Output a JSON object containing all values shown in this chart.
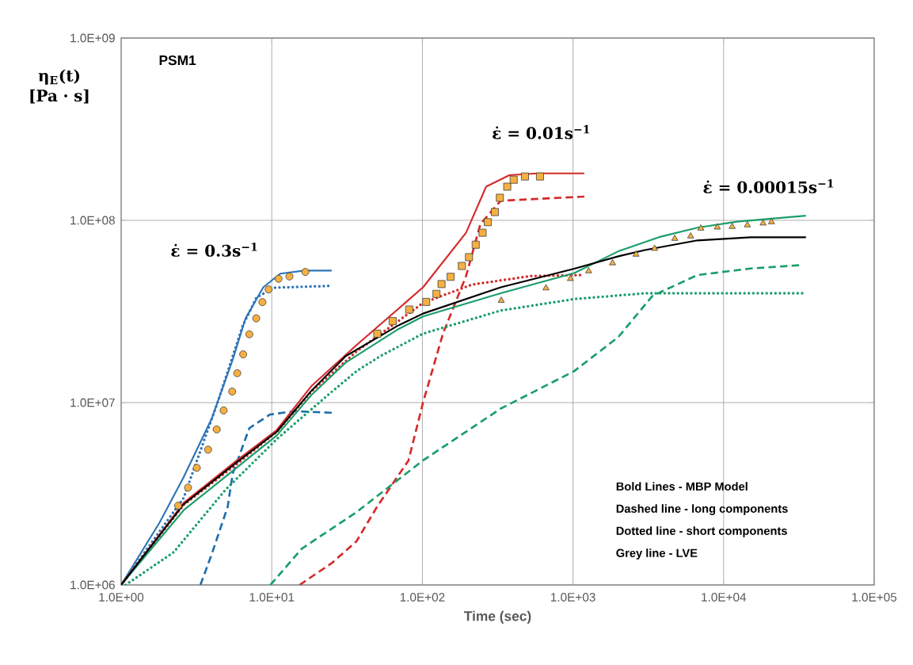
{
  "chart_data": {
    "type": "line",
    "xlabel": "Time (sec)",
    "ylabel": "η$_{E}$(t) [Pa · s]",
    "log": "xy",
    "grid": true,
    "xlim": [
      1,
      100000
    ],
    "ylim": [
      1000000,
      1000000000
    ],
    "xticks": [
      {
        "value": 1,
        "label": "1.0E+00"
      },
      {
        "value": 10,
        "label": "1.0E+01"
      },
      {
        "value": 100,
        "label": "1.0E+02"
      },
      {
        "value": 1000,
        "label": "1.0E+03"
      },
      {
        "value": 10000,
        "label": "1.0E+04"
      },
      {
        "value": 100000,
        "label": "1.0E+05"
      }
    ],
    "yticks": [
      {
        "value": 1000000,
        "label": "1.0E+06"
      },
      {
        "value": 10000000,
        "label": "1.0E+07"
      },
      {
        "value": 100000000,
        "label": "1.0E+08"
      },
      {
        "value": 1000000000,
        "label": "1.0E+09"
      }
    ],
    "annotations": [
      "PSM1",
      "ε̇ = 0.3s$^{−1}$",
      "ε̇ = 0.01s$^{−1}$",
      "ε̇ = 0.00015s$^{−1}$",
      "Bold Lines - MBP Model",
      "Dashed line - long components",
      "Dotted line - short components",
      "Grey line - LVE"
    ],
    "series": [
      {
        "line_style": "solid",
        "color": "#2e75b6",
        "x": [
          1,
          1.8,
          2.6,
          4,
          5.5,
          6.7,
          8.8,
          11.4,
          16.5,
          25
        ],
        "values": [
          1000000,
          2200000,
          3900000,
          8200000,
          17200000,
          29000000,
          43000000,
          51000000,
          53000000,
          53000000
        ]
      },
      {
        "line_style": "dotted",
        "color": "#2e75b6",
        "x": [
          1,
          2.6,
          4.4,
          6.4,
          7.9,
          10.3,
          25
        ],
        "values": [
          1000000,
          3000000,
          10200000,
          26300000,
          37600000,
          42700000,
          43700000
        ]
      },
      {
        "line_style": "dashed",
        "color": "#1f6fb0",
        "x": [
          3.36,
          4.0,
          5.1,
          5.5,
          7.1,
          9.7,
          14.1,
          25
        ],
        "values": [
          1000000,
          1480000,
          2690000,
          4070000,
          7240000,
          8600000,
          8980000,
          8800000
        ]
      },
      {
        "line_style": "solid",
        "color": "#d42a2a",
        "x": [
          1,
          2.6,
          5.8,
          10.8,
          18.3,
          36.6,
          101,
          195,
          265,
          378,
          582,
          1190
        ],
        "values": [
          1000000,
          2820000,
          4790000,
          7080000,
          12300000,
          20700000,
          42900000,
          85500000,
          153000000,
          177000000,
          181000000,
          181000000
        ]
      },
      {
        "line_style": "dotted",
        "color": "#d42a2a",
        "x": [
          1,
          2.6,
          5.8,
          10.8,
          18.3,
          36.6,
          101,
          213,
          526,
          1140
        ],
        "values": [
          1000000,
          2750000,
          4570000,
          6920000,
          11500000,
          19100000,
          35200000,
          44400000,
          49500000,
          50100000
        ]
      },
      {
        "line_style": "dashed",
        "color": "#d42a2a",
        "x": [
          15.3,
          25.1,
          36.6,
          50.1,
          80.9,
          101,
          137,
          195,
          243,
          331,
          1190
        ],
        "values": [
          1000000,
          1320000,
          1740000,
          2690000,
          4820000,
          10000000,
          23900000,
          49500000,
          95500000,
          128000000,
          135000000
        ]
      },
      {
        "line_style": "dotted",
        "color": "#1a9e6a",
        "x": [
          1.07,
          2.23,
          4.9,
          10.8,
          23.9,
          36.6,
          52.6,
          101,
          331,
          1020,
          3000,
          35200
        ],
        "values": [
          1000000,
          1510000,
          3310000,
          6310000,
          11100000,
          14900000,
          18000000,
          23900000,
          32000000,
          37000000,
          39800000,
          39800000
        ]
      },
      {
        "line_style": "dashed",
        "color": "#1a9e6a",
        "x": [
          9.8,
          15.8,
          36.6,
          101,
          331,
          1020,
          2000,
          3370,
          6700,
          15100,
          32400
        ],
        "values": [
          1000000,
          1580000,
          2510000,
          4820000,
          9270000,
          14900000,
          22900000,
          38500000,
          50100000,
          54400000,
          56800000
        ]
      },
      {
        "line_style": "solid",
        "color": "#1a9e6a",
        "x": [
          1,
          2.6,
          5.8,
          10.8,
          18.3,
          31,
          68,
          101,
          331,
          1020,
          2000,
          3730,
          6700,
          12300,
          35200
        ],
        "values": [
          1000000,
          2570000,
          4370000,
          6610000,
          11000000,
          16600000,
          25100000,
          29700000,
          39800000,
          51400000,
          67600000,
          80900000,
          91200000,
          98400000,
          106000000
        ]
      },
      {
        "line_style": "solid",
        "color": "#000000",
        "x": [
          1,
          2.6,
          5.8,
          10.8,
          18.3,
          31,
          68,
          101,
          331,
          1020,
          2000,
          3000,
          6700,
          15100,
          35200
        ],
        "values": [
          1000000,
          2770000,
          4680000,
          6920000,
          11600000,
          18000000,
          26300000,
          30800000,
          42900000,
          54300000,
          63500000,
          68700000,
          77600000,
          80700000,
          80700000
        ]
      },
      {
        "type": "scatter",
        "marker": "circle",
        "color": "#f5b041",
        "x": [
          2.39,
          2.78,
          3.18,
          3.78,
          4.31,
          4.79,
          5.46,
          5.9,
          6.46,
          7.1,
          7.89,
          8.67,
          9.53,
          11.1,
          13.1,
          16.7
        ],
        "values": [
          2720000,
          3420000,
          4390000,
          5520000,
          7130000,
          9060000,
          11500000,
          14500000,
          18400000,
          23700000,
          29000000,
          35600000,
          41800000,
          47800000,
          49200000,
          52100000
        ]
      },
      {
        "type": "scatter",
        "marker": "square",
        "color": "#f5b041",
        "x": [
          50.2,
          63.5,
          81.8,
          106,
          124,
          134,
          154,
          183,
          204,
          226,
          251,
          272,
          303,
          327,
          366,
          404,
          480,
          604
        ],
        "values": [
          23900000,
          28000000,
          32400000,
          35700000,
          39500000,
          44700000,
          49000000,
          56200000,
          62800000,
          73500000,
          85500000,
          97700000,
          111000000,
          133000000,
          153000000,
          167000000,
          174000000,
          174000000
        ]
      },
      {
        "type": "scatter",
        "marker": "triangle",
        "color": "#f5b041",
        "x": [
          334,
          662,
          962,
          1270,
          1830,
          2620,
          3480,
          4740,
          6040,
          7060,
          9080,
          11400,
          14400,
          18300,
          20800
        ],
        "values": [
          36300000,
          42500000,
          47800000,
          52700000,
          58300000,
          65000000,
          70000000,
          79400000,
          81800000,
          90400000,
          91600000,
          92300000,
          94200000,
          96400000,
          97900000
        ]
      }
    ]
  }
}
